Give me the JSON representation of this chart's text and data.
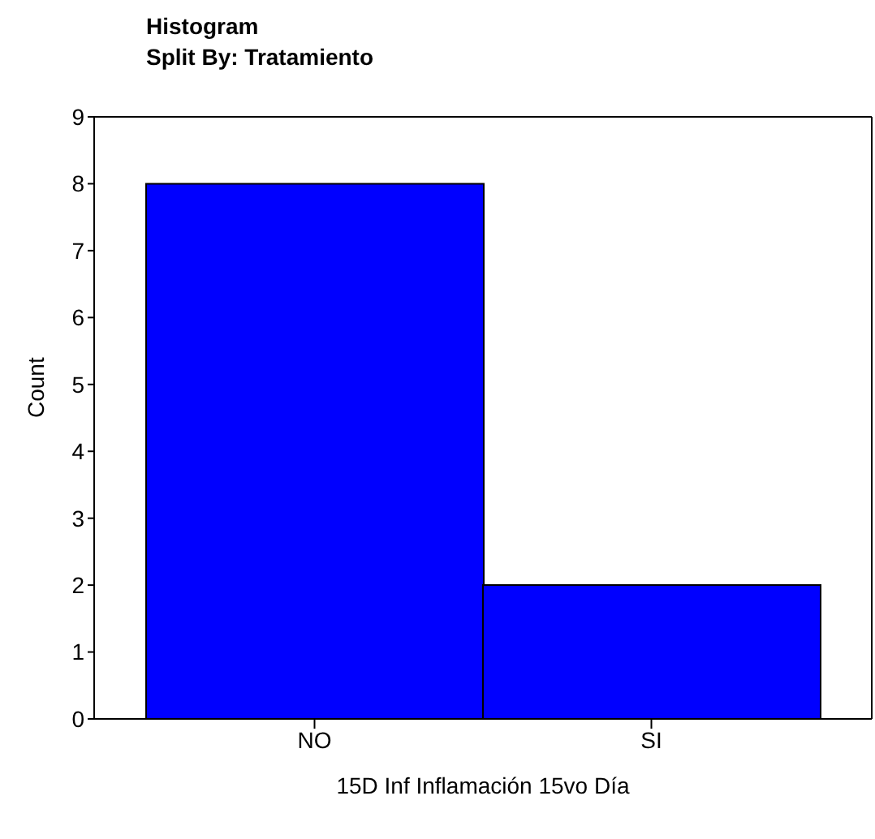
{
  "chart_data": {
    "type": "bar",
    "title": "Histogram",
    "subtitle": "Split By: Tratamiento",
    "xlabel": "15D Inf Inflamación 15vo Día",
    "ylabel": "Count",
    "categories": [
      "NO",
      "SI"
    ],
    "values": [
      8,
      2
    ],
    "color": "#0000ff",
    "ylim": [
      0,
      9
    ],
    "yticks": [
      0,
      1,
      2,
      3,
      4,
      5,
      6,
      7,
      8,
      9
    ],
    "grid": false,
    "legend": false
  }
}
